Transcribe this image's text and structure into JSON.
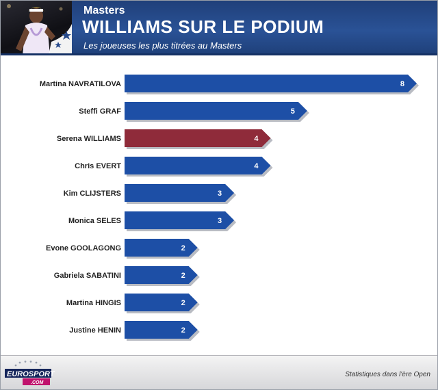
{
  "header": {
    "kicker": "Masters",
    "title": "WILLIAMS SUR LE PODIUM",
    "subtitle": "Les joueuses les plus titrées au Masters"
  },
  "footer": {
    "logo_line1": "EUROSPORT",
    "logo_line2": ".COM",
    "note": "Statistiques dans l'ère Open"
  },
  "colors": {
    "default_bar": "#1d4fa6",
    "highlight_bar": "#8f2b3a",
    "header_bg": "#24488a"
  },
  "chart_data": {
    "type": "bar",
    "orientation": "horizontal",
    "categories": [
      "Martina NAVRATILOVA",
      "Steffi GRAF",
      "Serena WILLIAMS",
      "Chris EVERT",
      "Kim CLIJSTERS",
      "Monica SELES",
      "Evone GOOLAGONG",
      "Gabriela SABATINI",
      "Martina HINGIS",
      "Justine HENIN"
    ],
    "values": [
      8,
      5,
      4,
      4,
      3,
      3,
      2,
      2,
      2,
      2
    ],
    "highlight": [
      "Serena WILLIAMS"
    ],
    "xlim": [
      0,
      8
    ],
    "grid": false,
    "legend": "none"
  }
}
